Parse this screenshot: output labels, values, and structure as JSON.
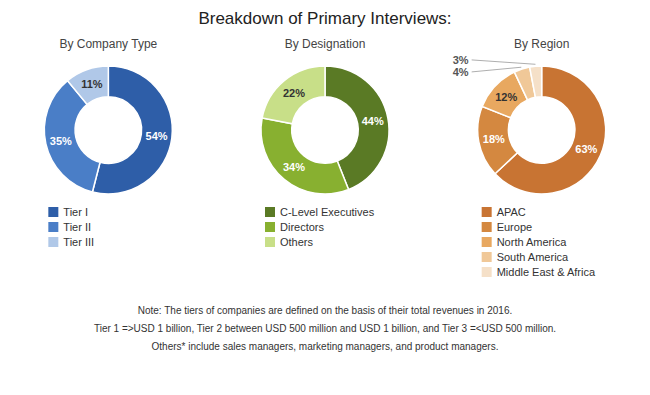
{
  "chart_data": [
    {
      "type": "pie",
      "title": "Breakdown of Primary Interviews:",
      "subtitle": "By Company Type",
      "categories": [
        "Tier I",
        "Tier II",
        "Tier III"
      ],
      "values": [
        54,
        35,
        11
      ],
      "value_labels": [
        "54%",
        "35%",
        "11%"
      ],
      "colors": [
        "#2e5ea8",
        "#4a7ec7",
        "#b0c8e8"
      ],
      "data_labels": true,
      "legend": "bottom",
      "annotations": [
        "Note: The tiers of companies are defined on the basis of their total revenues in 2016.",
        "Tier 1 =>USD 1 billion, Tier 2 between USD 500 million and USD 1 billion, and Tier 3 =<USD 500 million.",
        "Others* include sales managers, marketing managers, and product managers."
      ]
    },
    {
      "type": "pie",
      "subtitle": "By Designation",
      "categories": [
        "C-Level Executives",
        "Directors",
        "Others"
      ],
      "values": [
        44,
        34,
        22
      ],
      "value_labels": [
        "44%",
        "34%",
        "22%"
      ],
      "colors": [
        "#5a7a25",
        "#88b030",
        "#c8df88"
      ],
      "data_labels": true,
      "legend": "bottom"
    },
    {
      "type": "pie",
      "subtitle": "By Region",
      "categories": [
        "APAC",
        "Europe",
        "North America",
        "South America",
        "Middle East & Africa"
      ],
      "values": [
        63,
        18,
        12,
        4,
        3
      ],
      "value_labels": [
        "63%",
        "18%",
        "12%",
        "4%",
        "3%"
      ],
      "colors": [
        "#c87433",
        "#d48840",
        "#e8a860",
        "#f0c898",
        "#f5e0c8"
      ],
      "data_labels": true,
      "legend": "bottom"
    }
  ]
}
